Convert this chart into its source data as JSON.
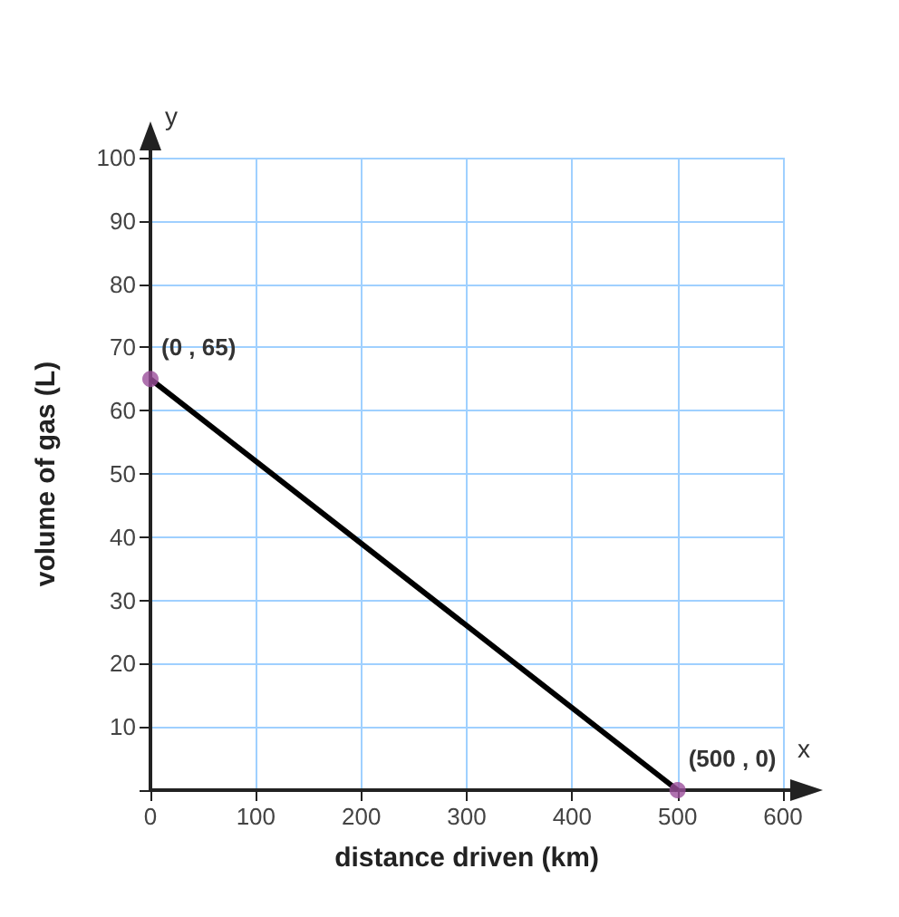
{
  "chart_data": {
    "type": "line",
    "xlabel": "distance driven (km)",
    "ylabel": "volume of gas (L)",
    "x": [
      0,
      500
    ],
    "xlim": [
      0,
      600
    ],
    "xticks": [
      0,
      100,
      200,
      300,
      400,
      500,
      600
    ],
    "ylim": [
      0,
      100
    ],
    "yticks": [
      {
        "value": 0,
        "label": null
      },
      10,
      20,
      30,
      40,
      50,
      60,
      70,
      80,
      90,
      100
    ],
    "grid": true,
    "series": [
      {
        "values": [
          65,
          0
        ],
        "color": "#000000",
        "marker": "none"
      },
      {
        "type": "scatter",
        "values": [
          65,
          0
        ],
        "color": "#9b4f9b",
        "marker": "circle"
      }
    ],
    "annotations": [
      {
        "text": "(0 , 65)",
        "x": 0,
        "y": 65
      },
      {
        "text": "(500 , 0)",
        "x": 500,
        "y": 0
      },
      "x",
      "y"
    ]
  }
}
